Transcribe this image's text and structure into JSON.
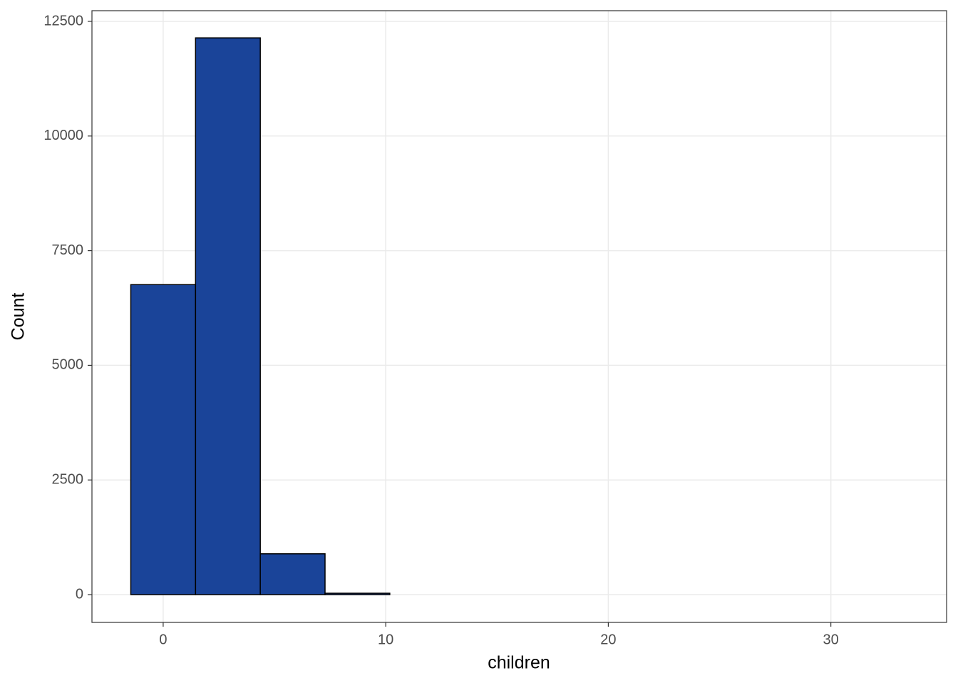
{
  "chart_data": {
    "type": "histogram",
    "x_label": "children",
    "y_label": "Count",
    "bins": [
      -1.4545,
      1.4545,
      4.3636,
      7.2727,
      10.1818,
      13.0909,
      16,
      18.9091,
      21.8182,
      24.7273,
      27.6364,
      30.5455,
      33.4545
    ],
    "values": [
      6760,
      12140,
      890,
      30,
      0,
      0,
      0,
      0,
      0,
      0,
      0,
      0
    ],
    "color": "#1a4499",
    "edge_color": "#000000",
    "xlim": [
      -3.2,
      35.2
    ],
    "xticks": [
      0,
      10,
      20,
      30
    ],
    "ylim": [
      -606,
      12733
    ],
    "yticks": [
      0,
      2500,
      5000,
      7500,
      10000,
      12500
    ],
    "grid": true
  }
}
